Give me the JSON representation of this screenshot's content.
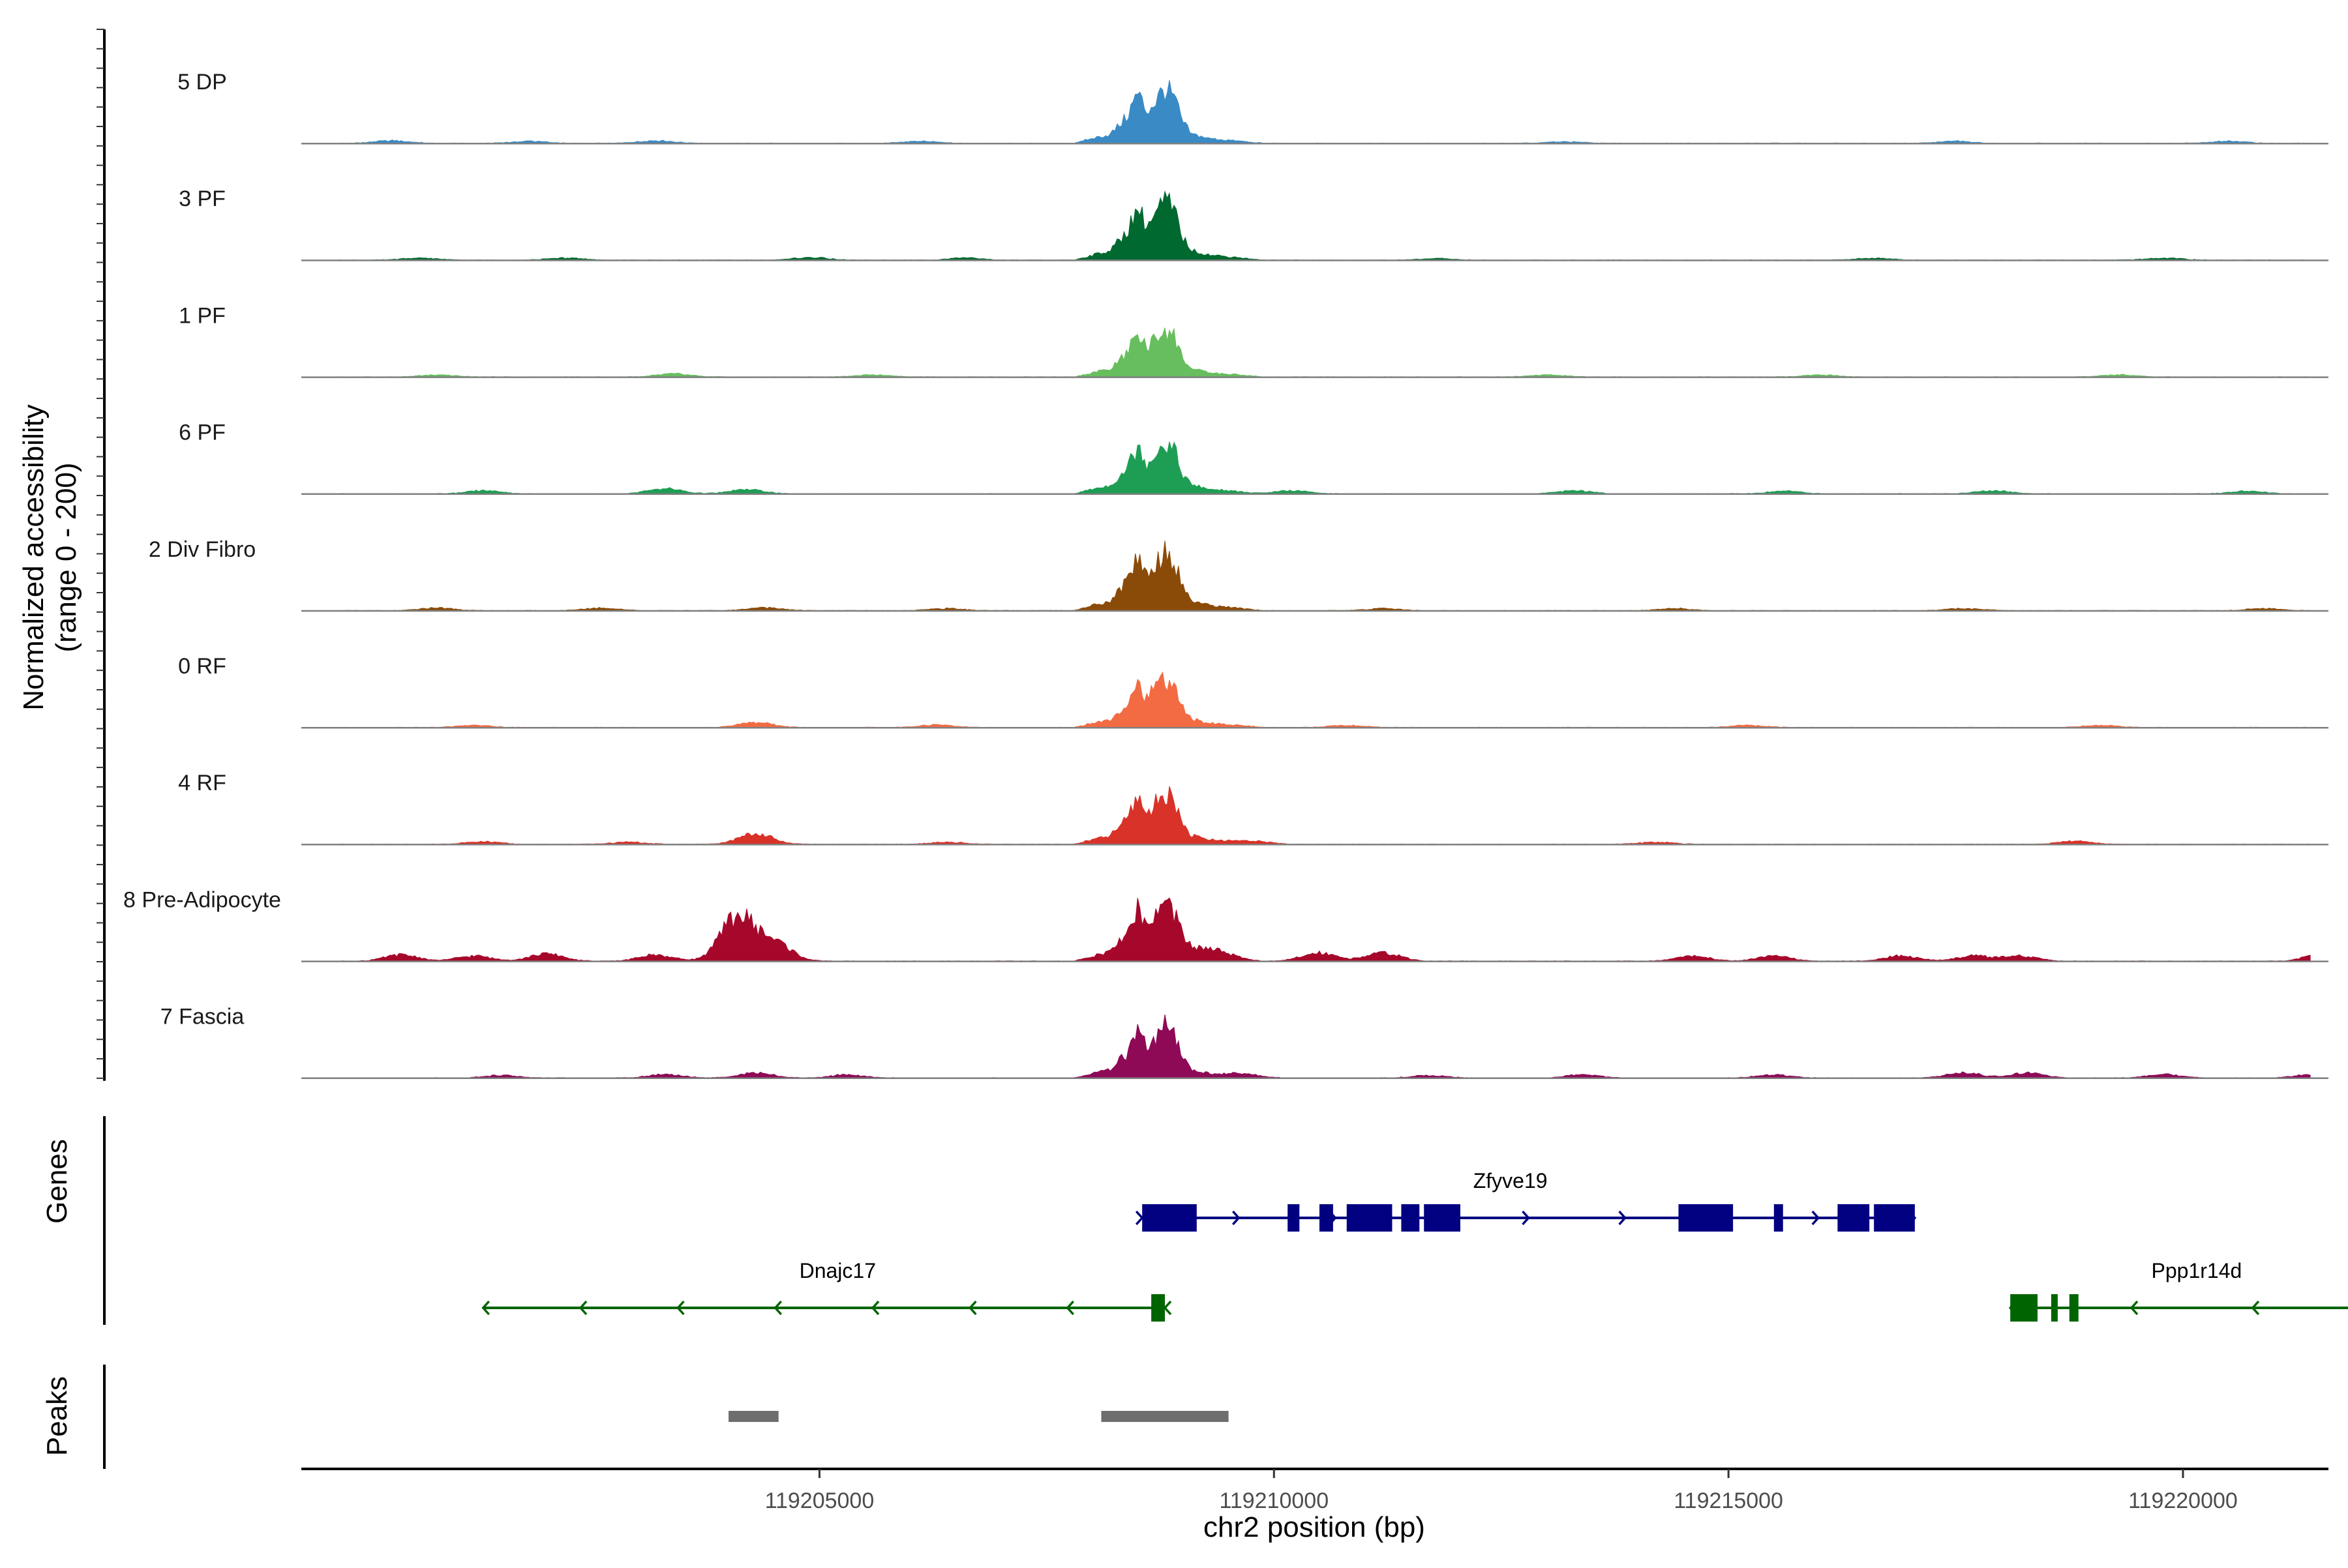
{
  "chart_data": {
    "type": "area",
    "title": "",
    "ylabel_line1": "Normalized accessibility",
    "ylabel_line2": "(range 0 - 200)",
    "xlabel": "chr2 position (bp)",
    "xlim": [
      119199300,
      119221600
    ],
    "ylim": [
      0,
      200
    ],
    "x_ticks": [
      119205000,
      119210000,
      119215000,
      119220000
    ],
    "x_tick_labels": [
      "119205000",
      "119210000",
      "119215000",
      "119220000"
    ],
    "peak_shape": {
      "x": [
        119207800,
        119208000,
        119208200,
        119208380,
        119208500,
        119208600,
        119208700,
        119208800,
        119208900,
        119209000,
        119209100,
        119209300,
        119209600,
        119209900
      ],
      "h": [
        0,
        0.08,
        0.15,
        0.45,
        0.85,
        0.55,
        0.72,
        0.95,
        0.78,
        0.35,
        0.15,
        0.08,
        0.04,
        0
      ]
    },
    "series": [
      {
        "name": "5 DP",
        "label": "5 DP",
        "color": "#3A8BC5",
        "peak": 112,
        "bumps": [
          [
            119200300,
            5
          ],
          [
            119201800,
            4
          ],
          [
            119203200,
            5
          ],
          [
            119206100,
            4
          ],
          [
            119213200,
            3
          ],
          [
            119217500,
            4
          ],
          [
            119220500,
            4
          ]
        ]
      },
      {
        "name": "3 PF",
        "label": "3 PF",
        "color": "#00692F",
        "peak": 120,
        "bumps": [
          [
            119200600,
            4
          ],
          [
            119202200,
            4
          ],
          [
            119204900,
            5
          ],
          [
            119206600,
            4
          ],
          [
            119211800,
            3
          ],
          [
            119216600,
            4
          ],
          [
            119219800,
            4
          ]
        ]
      },
      {
        "name": "1 PF",
        "label": "1 PF",
        "color": "#67BE5F",
        "peak": 100,
        "bumps": [
          [
            119200800,
            4
          ],
          [
            119203400,
            6
          ],
          [
            119205600,
            4
          ],
          [
            119213000,
            4
          ],
          [
            119216000,
            4
          ],
          [
            119219300,
            4
          ]
        ]
      },
      {
        "name": "6 PF",
        "label": "6 PF",
        "color": "#1E9E54",
        "peak": 108,
        "bumps": [
          [
            119201300,
            6
          ],
          [
            119203300,
            10
          ],
          [
            119204200,
            8
          ],
          [
            119210200,
            6
          ],
          [
            119213300,
            6
          ],
          [
            119215600,
            5
          ],
          [
            119217900,
            6
          ],
          [
            119220700,
            5
          ]
        ]
      },
      {
        "name": "2 Div Fibro",
        "label": "2 Div Fibro",
        "color": "#8B4B08",
        "peak": 125,
        "bumps": [
          [
            119200800,
            5
          ],
          [
            119202600,
            5
          ],
          [
            119204400,
            6
          ],
          [
            119206400,
            4
          ],
          [
            119211200,
            4
          ],
          [
            119214400,
            4
          ],
          [
            119217600,
            4
          ],
          [
            119220900,
            4
          ]
        ]
      },
      {
        "name": "0 RF",
        "label": "0 RF",
        "color": "#F26B43",
        "peak": 102,
        "bumps": [
          [
            119201200,
            4
          ],
          [
            119204300,
            10
          ],
          [
            119206300,
            5
          ],
          [
            119210800,
            4
          ],
          [
            119215200,
            4
          ],
          [
            119219100,
            4
          ]
        ]
      },
      {
        "name": "4 RF",
        "label": "4 RF",
        "color": "#D93228",
        "peak": 108,
        "bumps": [
          [
            119201300,
            5
          ],
          [
            119202900,
            4
          ],
          [
            119204300,
            20
          ],
          [
            119206400,
            4
          ],
          [
            119209800,
            5
          ],
          [
            119214200,
            4
          ],
          [
            119218800,
            6
          ]
        ]
      },
      {
        "name": "8 Pre-Adipocyte",
        "label": "8 Pre-Adipocyte",
        "color": "#A6082B",
        "peak": 120,
        "bumps": [
          [
            119200400,
            12
          ],
          [
            119201200,
            10
          ],
          [
            119202000,
            14
          ],
          [
            119203200,
            12
          ],
          [
            119204100,
            85
          ],
          [
            119204500,
            35
          ],
          [
            119209300,
            14
          ],
          [
            119210500,
            16
          ],
          [
            119211200,
            16
          ],
          [
            119214600,
            10
          ],
          [
            119215500,
            10
          ],
          [
            119216900,
            10
          ],
          [
            119217700,
            10
          ],
          [
            119218200,
            10
          ],
          [
            119221600,
            24
          ]
        ]
      },
      {
        "name": "7 Fascia",
        "label": "7 Fascia",
        "color": "#8E0A57",
        "peak": 102,
        "bumps": [
          [
            119201500,
            5
          ],
          [
            119203300,
            7
          ],
          [
            119204300,
            10
          ],
          [
            119205300,
            6
          ],
          [
            119209700,
            5
          ],
          [
            119211700,
            5
          ],
          [
            119213400,
            6
          ],
          [
            119215500,
            6
          ],
          [
            119217600,
            10
          ],
          [
            119218300,
            10
          ],
          [
            119219800,
            7
          ],
          [
            119221400,
            6
          ]
        ]
      }
    ],
    "genes_label": "Genes",
    "genes": [
      {
        "name": "Zfyve19",
        "strand": "+",
        "color": "#000080",
        "start": 119208550,
        "end": 119217050,
        "exons": [
          [
            119208550,
            119209150
          ],
          [
            119210150,
            119210280
          ],
          [
            119210500,
            119210650
          ],
          [
            119210800,
            119211300
          ],
          [
            119211400,
            119211600
          ],
          [
            119211650,
            119212050
          ],
          [
            119214450,
            119215050
          ],
          [
            119215500,
            119215600
          ],
          [
            119216200,
            119216550
          ],
          [
            119216600,
            119217050
          ]
        ]
      },
      {
        "name": "Dnajc17",
        "strand": "-",
        "color": "#006400",
        "start": 119201300,
        "end": 119208800,
        "exons": [
          [
            119208650,
            119208800
          ]
        ]
      },
      {
        "name": "Ppp1r14d",
        "strand": "-",
        "color": "#006400",
        "start": 119218100,
        "end": 119222100,
        "exons": [
          [
            119218100,
            119218400
          ],
          [
            119218550,
            119218600
          ],
          [
            119218750,
            119218850
          ]
        ]
      }
    ],
    "peaks_label": "Peaks",
    "peaks": [
      [
        119204000,
        119204550
      ],
      [
        119208100,
        119209500
      ]
    ]
  }
}
